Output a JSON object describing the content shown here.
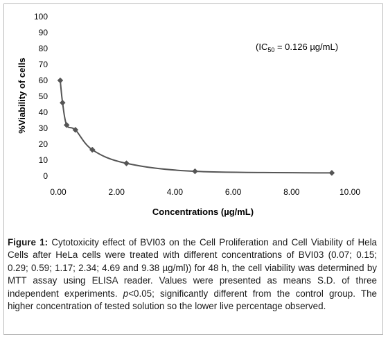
{
  "chart_data": {
    "type": "line",
    "title": "",
    "xlabel": "Concentrations (µg/mL)",
    "ylabel": "%Viability of cells",
    "xlim": [
      0,
      10
    ],
    "ylim": [
      0,
      100
    ],
    "x_ticks": [
      "0.00",
      "2.00",
      "4.00",
      "6.00",
      "8.00",
      "10.00"
    ],
    "y_ticks": [
      "0",
      "10",
      "20",
      "30",
      "40",
      "50",
      "60",
      "70",
      "80",
      "90",
      "100"
    ],
    "grid": false,
    "legend": "none",
    "series": [
      {
        "x": [
          0.07,
          0.15,
          0.29,
          0.59,
          1.17,
          2.34,
          4.69,
          9.38
        ],
        "y": [
          60,
          46,
          32,
          29,
          16.5,
          8,
          3,
          2
        ],
        "color": "#555555"
      }
    ],
    "annotation": {
      "prefix": "(IC",
      "subscript": "50",
      "suffix": " = 0.126 µg/mL)"
    }
  },
  "caption": {
    "label": "Figure 1:",
    "text": " Cytotoxicity effect of BVI03 on the Cell Proliferation and Cell Viability of Hela Cells  after HeLa cells were treated with different concentrations of BVI03 (0.07; 0.15; 0.29; 0.59; 1.17; 2.34; 4.69 and 9.38 µg/ml)) for 48 h, the cell viability was determined by MTT assay using ELISA reader. Values were presented as means S.D. of three independent experiments. ",
    "italic": "p",
    "text_after": "<0.05; significantly different from the control group. The higher concentration of tested solution so the lower live percentage observed."
  }
}
